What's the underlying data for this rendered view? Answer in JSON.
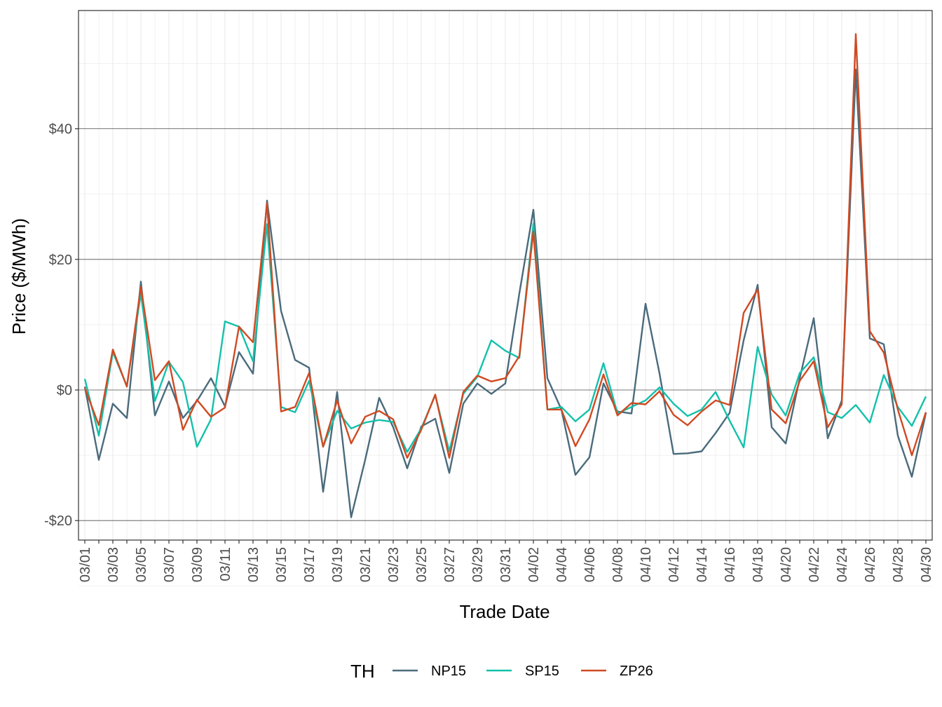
{
  "chart_data": {
    "type": "line",
    "xlabel": "Trade Date",
    "ylabel": "Price ($/MWh)",
    "ylim": [
      -22.5,
      58
    ],
    "y_ticks": [
      -20,
      0,
      20,
      40
    ],
    "y_tick_labels": [
      "-$20",
      "$0",
      "$20",
      "$40"
    ],
    "grid": true,
    "legend": {
      "title": "TH",
      "position": "bottom"
    },
    "x_tick_labels": [
      "03/01",
      "03/03",
      "03/05",
      "03/07",
      "03/09",
      "03/11",
      "03/13",
      "03/15",
      "03/17",
      "03/19",
      "03/21",
      "03/23",
      "03/25",
      "03/27",
      "03/29",
      "03/31",
      "04/02",
      "04/04",
      "04/06",
      "04/08",
      "04/10",
      "04/12",
      "04/14",
      "04/16",
      "04/18",
      "04/20",
      "04/22",
      "04/24",
      "04/26",
      "04/28",
      "04/30"
    ],
    "x": [
      "03/01",
      "03/02",
      "03/03",
      "03/04",
      "03/05",
      "03/06",
      "03/07",
      "03/08",
      "03/09",
      "03/10",
      "03/11",
      "03/12",
      "03/13",
      "03/14",
      "03/15",
      "03/16",
      "03/17",
      "03/18",
      "03/19",
      "03/20",
      "03/21",
      "03/22",
      "03/23",
      "03/24",
      "03/25",
      "03/26",
      "03/27",
      "03/28",
      "03/29",
      "03/30",
      "03/31",
      "04/01",
      "04/02",
      "04/03",
      "04/04",
      "04/05",
      "04/06",
      "04/07",
      "04/08",
      "04/09",
      "04/10",
      "04/11",
      "04/12",
      "04/13",
      "04/14",
      "04/15",
      "04/16",
      "04/17",
      "04/18",
      "04/19",
      "04/20",
      "04/21",
      "04/22",
      "04/23",
      "04/24",
      "04/25",
      "04/26",
      "04/27",
      "04/28",
      "04/29",
      "04/30"
    ],
    "series": [
      {
        "name": "NP15",
        "color": "#4a6b7c",
        "values": [
          0.5,
          -10.7,
          -2.1,
          -4.3,
          16.6,
          -3.9,
          1.3,
          -4.3,
          -1.7,
          1.8,
          -2.5,
          5.8,
          2.5,
          29.0,
          12.1,
          4.6,
          3.4,
          -15.6,
          -0.3,
          -19.5,
          -10.7,
          -1.2,
          -5.7,
          -12.0,
          -5.6,
          -4.4,
          -12.7,
          -2.1,
          1.0,
          -0.6,
          1.0,
          14.8,
          27.6,
          1.8,
          -3.0,
          -13.0,
          -10.3,
          1.0,
          -3.3,
          -3.6,
          13.2,
          2.5,
          -9.8,
          -9.7,
          -9.4,
          -6.6,
          -3.5,
          7.6,
          16.1,
          -5.7,
          -8.2,
          1.8,
          11.0,
          -7.4,
          -1.6,
          49.1,
          7.9,
          7.0,
          -7.0,
          -13.3,
          -3.5
        ]
      },
      {
        "name": "SP15",
        "color": "#14c1ab",
        "values": [
          1.7,
          -7.0,
          5.8,
          0.6,
          14.8,
          -1.7,
          4.3,
          1.2,
          -8.7,
          -4.5,
          10.5,
          9.7,
          4.4,
          25.4,
          -2.6,
          -3.4,
          1.4,
          -8.7,
          -3.2,
          -5.9,
          -5.0,
          -4.6,
          -4.9,
          -9.5,
          -5.9,
          -0.8,
          -9.4,
          -0.6,
          2.0,
          7.6,
          6.0,
          4.9,
          25.5,
          -3.0,
          -2.6,
          -4.8,
          -3.0,
          4.1,
          -3.6,
          -2.6,
          -1.6,
          0.4,
          -2.1,
          -4.0,
          -3.0,
          -0.3,
          -4.7,
          -8.8,
          6.6,
          -0.7,
          -3.9,
          2.6,
          5.0,
          -3.4,
          -4.3,
          -2.3,
          -5.0,
          2.3,
          -2.6,
          -5.5,
          -1.0
        ]
      },
      {
        "name": "ZP26",
        "color": "#d04a22",
        "values": [
          0.3,
          -5.4,
          6.2,
          0.5,
          15.8,
          1.5,
          4.4,
          -6.1,
          -1.5,
          -4.1,
          -2.7,
          9.7,
          7.3,
          28.6,
          -3.3,
          -2.6,
          2.6,
          -8.7,
          -1.6,
          -8.2,
          -4.1,
          -3.2,
          -4.5,
          -10.4,
          -6.1,
          -0.7,
          -10.4,
          -0.3,
          2.2,
          1.3,
          1.8,
          5.2,
          24.3,
          -3.0,
          -3.0,
          -8.6,
          -4.5,
          2.4,
          -3.9,
          -2.0,
          -2.2,
          -0.2,
          -3.8,
          -5.4,
          -3.3,
          -1.6,
          -2.3,
          11.8,
          15.4,
          -3.0,
          -5.1,
          1.4,
          4.4,
          -5.7,
          -2.2,
          54.5,
          9.0,
          5.7,
          -3.0,
          -10.0,
          -3.4
        ]
      }
    ]
  }
}
